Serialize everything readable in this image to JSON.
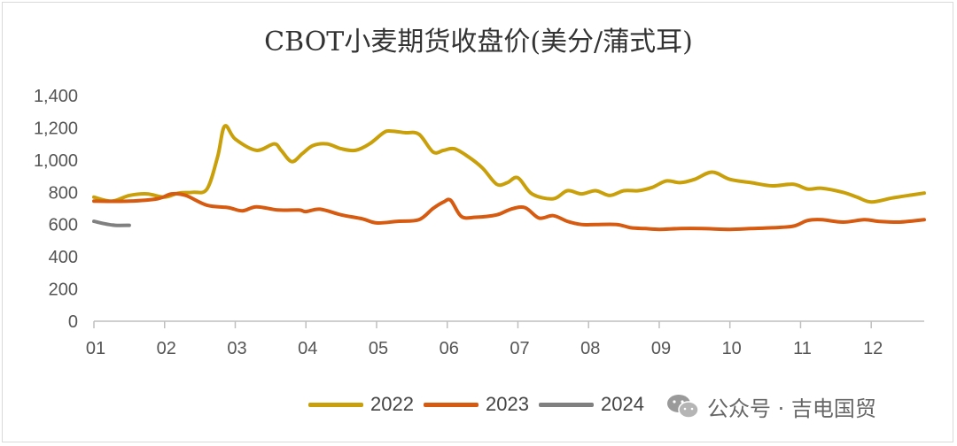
{
  "chart_data": {
    "type": "line",
    "title": "CBOT小麦期货收盘价(美分/蒲式耳)",
    "xlabel": "",
    "ylabel": "",
    "ylim": [
      0,
      1400
    ],
    "y_ticks": [
      "0",
      "200",
      "400",
      "600",
      "800",
      "1,000",
      "1,200",
      "1,400"
    ],
    "y_tick_values": [
      0,
      200,
      400,
      600,
      800,
      1000,
      1200,
      1400
    ],
    "x_ticks": [
      "01",
      "02",
      "03",
      "04",
      "05",
      "06",
      "07",
      "08",
      "09",
      "10",
      "11",
      "12"
    ],
    "xlim": [
      1,
      12.75
    ],
    "grid": false,
    "legend_position": "bottom",
    "series": [
      {
        "name": "2022",
        "color": "#C9A00A",
        "x": [
          1.0,
          1.25,
          1.5,
          1.75,
          2.0,
          2.2,
          2.4,
          2.6,
          2.75,
          2.85,
          3.0,
          3.3,
          3.55,
          3.65,
          3.8,
          3.95,
          4.1,
          4.3,
          4.5,
          4.7,
          4.9,
          5.1,
          5.2,
          5.4,
          5.6,
          5.8,
          5.95,
          6.1,
          6.3,
          6.5,
          6.7,
          6.85,
          7.0,
          7.2,
          7.5,
          7.7,
          7.9,
          8.1,
          8.3,
          8.5,
          8.7,
          8.9,
          9.1,
          9.3,
          9.5,
          9.75,
          10.0,
          10.3,
          10.6,
          10.9,
          11.1,
          11.3,
          11.6,
          11.8,
          12.0,
          12.3,
          12.6,
          12.75
        ],
        "values": [
          770,
          745,
          780,
          790,
          770,
          795,
          800,
          820,
          1020,
          1210,
          1130,
          1060,
          1100,
          1060,
          990,
          1040,
          1090,
          1100,
          1070,
          1060,
          1100,
          1170,
          1180,
          1170,
          1160,
          1050,
          1060,
          1070,
          1020,
          950,
          850,
          860,
          890,
          790,
          760,
          810,
          790,
          810,
          780,
          810,
          810,
          830,
          870,
          860,
          880,
          925,
          880,
          860,
          840,
          850,
          820,
          825,
          800,
          770,
          740,
          765,
          785,
          795
        ]
      },
      {
        "name": "2023",
        "color": "#D65A10",
        "x": [
          1.0,
          1.5,
          1.9,
          2.1,
          2.3,
          2.6,
          2.9,
          3.1,
          3.3,
          3.6,
          3.9,
          4.0,
          4.2,
          4.5,
          4.8,
          5.0,
          5.3,
          5.6,
          5.8,
          5.95,
          6.05,
          6.2,
          6.4,
          6.7,
          6.9,
          7.1,
          7.3,
          7.5,
          7.7,
          7.9,
          8.1,
          8.4,
          8.6,
          8.8,
          9.0,
          9.3,
          9.6,
          10.0,
          10.3,
          10.6,
          10.9,
          11.1,
          11.3,
          11.6,
          11.9,
          12.1,
          12.4,
          12.75
        ],
        "values": [
          745,
          745,
          760,
          790,
          780,
          720,
          705,
          685,
          710,
          690,
          690,
          680,
          695,
          660,
          635,
          610,
          620,
          630,
          700,
          740,
          750,
          650,
          645,
          660,
          695,
          705,
          640,
          655,
          620,
          600,
          600,
          600,
          580,
          575,
          570,
          575,
          575,
          570,
          575,
          580,
          590,
          625,
          630,
          615,
          630,
          620,
          615,
          630
        ]
      },
      {
        "name": "2024",
        "color": "#808080",
        "x": [
          1.0,
          1.15,
          1.3,
          1.5
        ],
        "values": [
          620,
          605,
          595,
          595
        ]
      }
    ]
  },
  "legend": [
    {
      "label": "2022",
      "color": "#C9A00A"
    },
    {
      "label": "2023",
      "color": "#D65A10"
    },
    {
      "label": "2024",
      "color": "#808080"
    }
  ],
  "watermark": {
    "text": "公众号 · 吉电国贸",
    "icon": "wechat-icon"
  }
}
